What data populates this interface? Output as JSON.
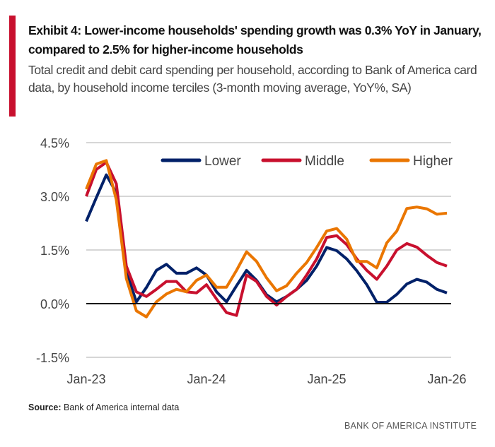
{
  "header": {
    "title": "Exhibit 4: Lower-income households' spending growth was 0.3% YoY in January, compared to 2.5% for higher-income households",
    "subtitle": "Total credit and debit card spending per household, according to Bank of America card data, by household income terciles (3-month moving average, YoY%, SA)"
  },
  "footer": {
    "source_label": "Source:",
    "source_text": " Bank of America internal data",
    "brand": "BANK OF AMERICA INSTITUTE"
  },
  "chart_data": {
    "type": "line",
    "title": "Exhibit 4: Lower-income households' spending growth was 0.3% YoY in January, compared to 2.5% for higher-income households",
    "xlabel": "",
    "ylabel": "YoY%",
    "ylim": [
      -1.5,
      4.5
    ],
    "yticks": [
      4.5,
      3.0,
      1.5,
      0.0,
      -1.5
    ],
    "ytick_labels": [
      "4.5%",
      "3.0%",
      "1.5%",
      "0.0%",
      "-1.5%"
    ],
    "xtick_labels": [
      {
        "index": 0,
        "label": "Jan-23"
      },
      {
        "index": 12,
        "label": "Jan-24"
      },
      {
        "index": 24,
        "label": "Jan-25"
      },
      {
        "index": 36,
        "label": "Jan-26"
      }
    ],
    "x_period": "monthly Jan-23 to Jan-26",
    "grid": true,
    "legend": "top",
    "series": [
      {
        "name": "Lower",
        "color": "#012169",
        "values": [
          2.3,
          2.96,
          3.6,
          3.1,
          0.9,
          0.05,
          0.45,
          0.93,
          1.1,
          0.85,
          0.85,
          1.0,
          0.8,
          0.33,
          0.05,
          0.5,
          0.93,
          0.65,
          0.25,
          0.05,
          0.2,
          0.4,
          0.65,
          1.05,
          1.57,
          1.48,
          1.25,
          0.92,
          0.53,
          0.04,
          0.04,
          0.26,
          0.55,
          0.68,
          0.6,
          0.4,
          0.3
        ]
      },
      {
        "name": "Middle",
        "color": "#c8102e",
        "values": [
          3.0,
          3.75,
          3.95,
          3.35,
          1.05,
          0.33,
          0.2,
          0.4,
          0.62,
          0.62,
          0.33,
          0.3,
          0.53,
          0.13,
          -0.25,
          -0.33,
          0.8,
          0.62,
          0.2,
          -0.04,
          0.2,
          0.4,
          0.8,
          1.25,
          1.85,
          1.9,
          1.65,
          1.25,
          0.93,
          0.68,
          1.05,
          1.5,
          1.68,
          1.58,
          1.35,
          1.15,
          1.05
        ]
      },
      {
        "name": "Higher",
        "color": "#ea7600",
        "values": [
          3.2,
          3.9,
          4.0,
          2.9,
          0.7,
          -0.2,
          -0.37,
          0.05,
          0.27,
          0.4,
          0.33,
          0.65,
          0.8,
          0.46,
          0.46,
          0.93,
          1.45,
          1.18,
          0.72,
          0.36,
          0.5,
          0.85,
          1.15,
          1.57,
          2.03,
          2.1,
          1.8,
          1.18,
          1.18,
          1.0,
          1.7,
          2.03,
          2.66,
          2.7,
          2.65,
          2.5,
          2.53
        ]
      }
    ]
  }
}
